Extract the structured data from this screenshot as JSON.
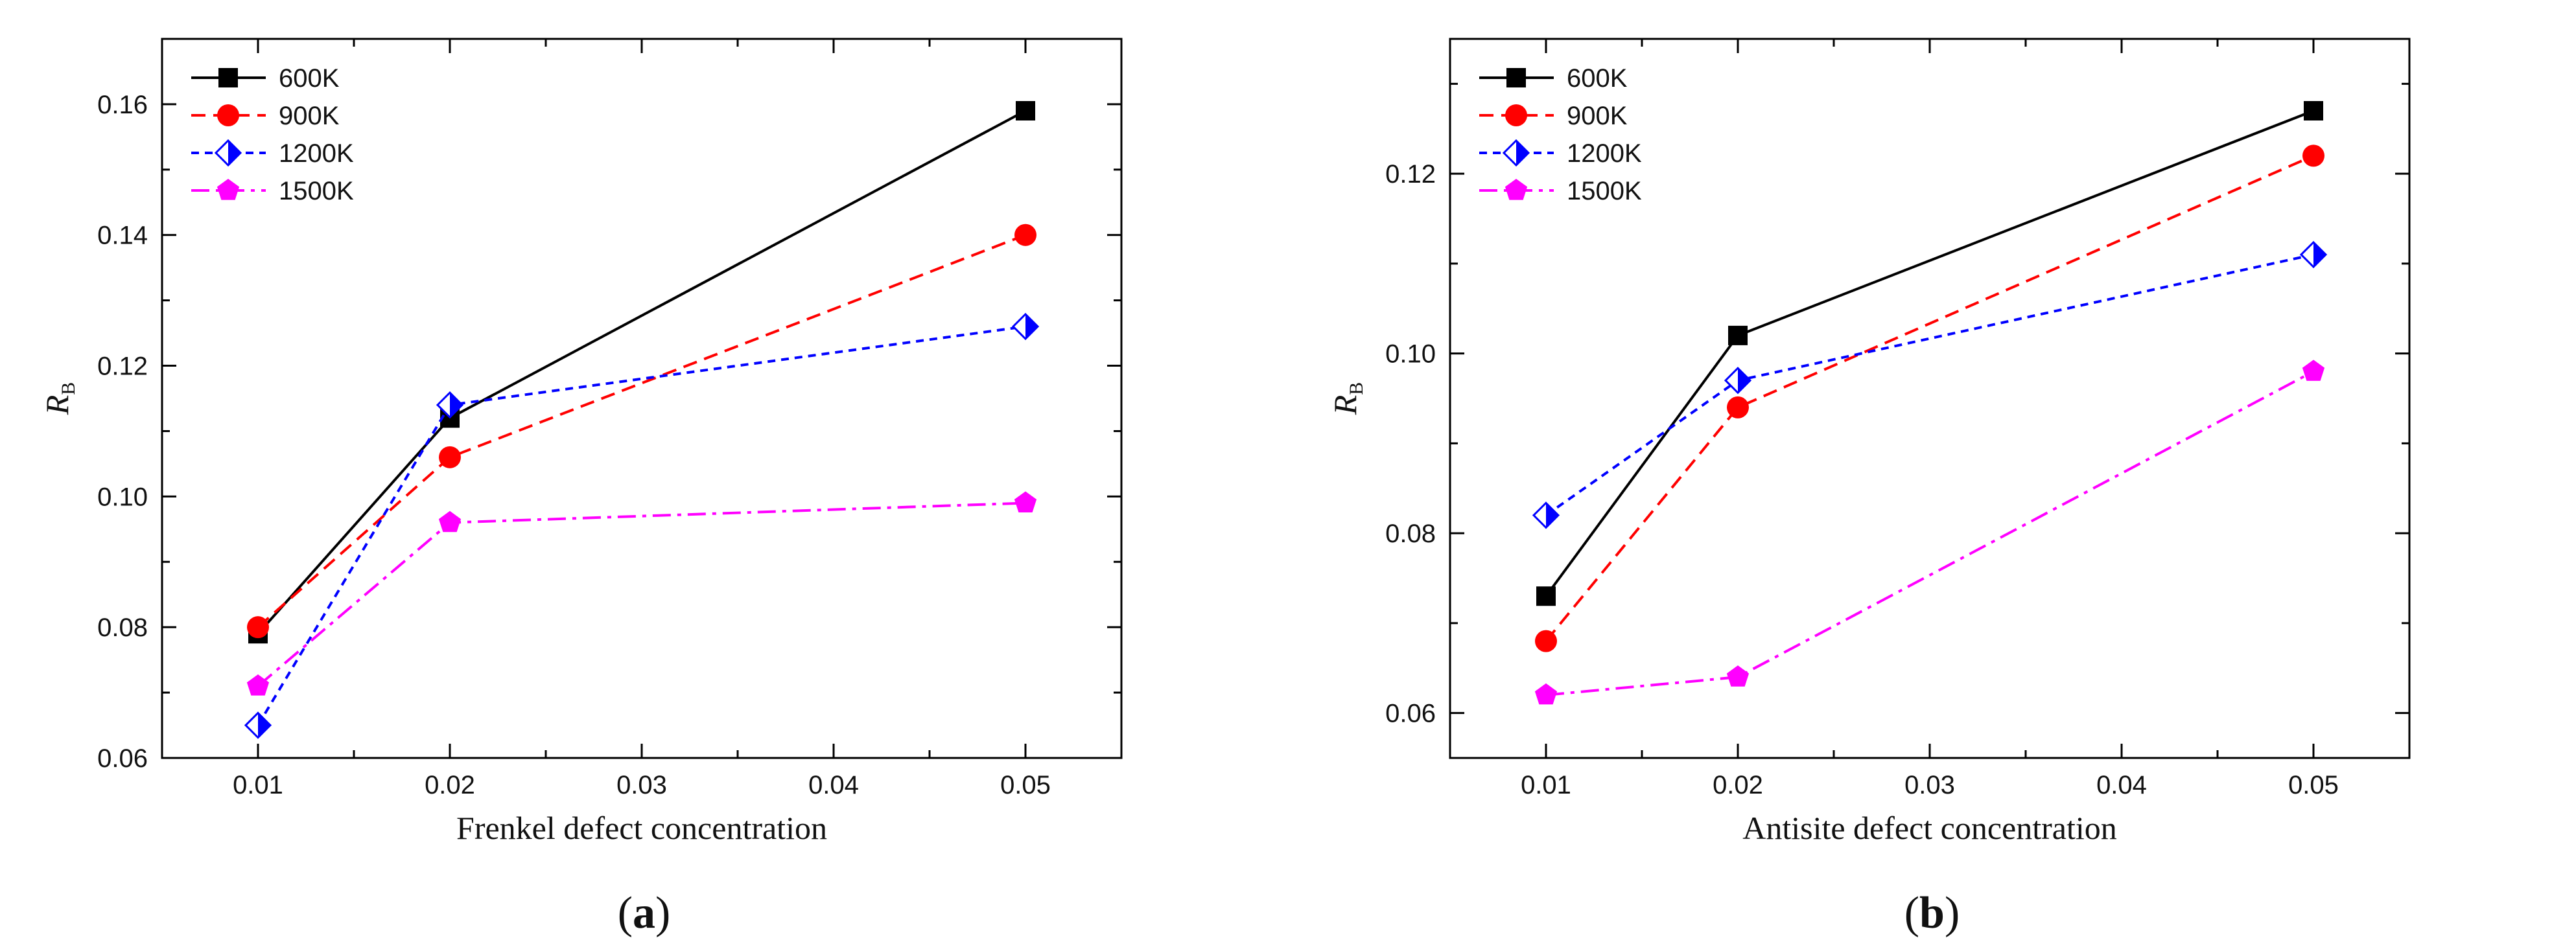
{
  "chart_data": [
    {
      "type": "line",
      "panel": "a",
      "caption_letter": "a",
      "xlabel": "Frenkel defect concentration",
      "ylabel_main": "R",
      "ylabel_sub": "B",
      "xlim": [
        0.005,
        0.055
      ],
      "ylim": [
        0.06,
        0.17
      ],
      "xticks": [
        0.01,
        0.02,
        0.03,
        0.04,
        0.05
      ],
      "xtick_labels": [
        "0.01",
        "0.02",
        "0.03",
        "0.04",
        "0.05"
      ],
      "yticks": [
        0.06,
        0.08,
        0.1,
        0.12,
        0.14,
        0.16
      ],
      "ytick_labels": [
        "0.06",
        "0.08",
        "0.10",
        "0.12",
        "0.14",
        "0.16"
      ],
      "legend_position": "top-left",
      "x": [
        0.01,
        0.02,
        0.05
      ],
      "series": [
        {
          "name": "600K",
          "values": [
            0.079,
            0.112,
            0.159
          ],
          "color": "#000000",
          "marker": "square",
          "dash": "solid"
        },
        {
          "name": "900K",
          "values": [
            0.08,
            0.106,
            0.14
          ],
          "color": "#ff0000",
          "marker": "circle",
          "dash": "dash"
        },
        {
          "name": "1200K",
          "values": [
            0.065,
            0.114,
            0.126
          ],
          "color": "#0000ff",
          "marker": "diamond",
          "dash": "shortdash"
        },
        {
          "name": "1500K",
          "values": [
            0.071,
            0.096,
            0.099
          ],
          "color": "#ff00ff",
          "marker": "pentagon",
          "dash": "dashdot"
        }
      ]
    },
    {
      "type": "line",
      "panel": "b",
      "caption_letter": "b",
      "xlabel": "Antisite defect concentration",
      "ylabel_main": "R",
      "ylabel_sub": "B",
      "xlim": [
        0.005,
        0.055
      ],
      "ylim": [
        0.055,
        0.135
      ],
      "xticks": [
        0.01,
        0.02,
        0.03,
        0.04,
        0.05
      ],
      "xtick_labels": [
        "0.01",
        "0.02",
        "0.03",
        "0.04",
        "0.05"
      ],
      "yticks": [
        0.06,
        0.08,
        0.1,
        0.12
      ],
      "ytick_labels": [
        "0.06",
        "0.08",
        "0.10",
        "0.12"
      ],
      "legend_position": "top-left",
      "x": [
        0.01,
        0.02,
        0.05
      ],
      "series": [
        {
          "name": "600K",
          "values": [
            0.073,
            0.102,
            0.127
          ],
          "color": "#000000",
          "marker": "square",
          "dash": "solid"
        },
        {
          "name": "900K",
          "values": [
            0.068,
            0.094,
            0.122
          ],
          "color": "#ff0000",
          "marker": "circle",
          "dash": "dash"
        },
        {
          "name": "1200K",
          "values": [
            0.082,
            0.097,
            0.111
          ],
          "color": "#0000ff",
          "marker": "diamond",
          "dash": "shortdash"
        },
        {
          "name": "1500K",
          "values": [
            0.062,
            0.064,
            0.098
          ],
          "color": "#ff00ff",
          "marker": "pentagon",
          "dash": "dashdot"
        }
      ]
    }
  ]
}
